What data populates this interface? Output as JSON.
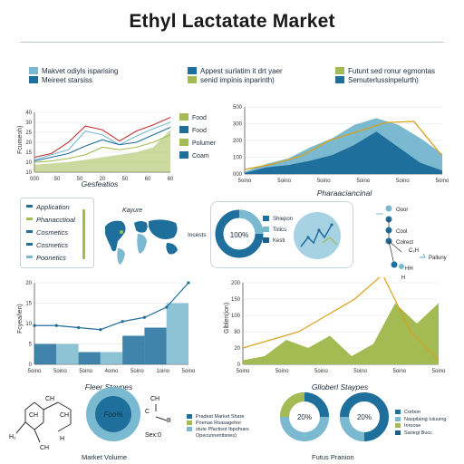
{
  "title": "Ethyl Lactatate Market",
  "colors": {
    "navy": "#1f6f9c",
    "teal": "#7ab9cf",
    "olive": "#a3bb52",
    "red": "#c03030",
    "gold": "#d8a21b",
    "darkteal": "#1a5f8a"
  },
  "top_left_legend": [
    "Makvet odiyls isparising",
    "Meireet starsiss"
  ],
  "top_mid_legend": [
    "Appest surlatim it drt yaer",
    "senid impinis inparinth)"
  ],
  "top_right_legend": [
    "Futunt sed ronur egmontas",
    "Semuterlussinpelurth)"
  ],
  "right_side_labels": [
    "Food",
    "Food",
    "Polumer",
    "Coam"
  ],
  "chart_data": [
    {
      "type": "line",
      "xlabel": "Gesfeatios",
      "ylabel": "Fcumeoh)",
      "x_ticks": [
        "000",
        "50",
        "50",
        "20",
        "50",
        "60",
        "60"
      ],
      "y_ticks": [
        "40",
        "30",
        "25",
        "20",
        "15",
        "10",
        "10"
      ],
      "series": [
        {
          "values": [
            12,
            15,
            24,
            37,
            34,
            25,
            33,
            38,
            44
          ]
        },
        {
          "values": [
            10,
            14,
            18,
            33,
            30,
            22,
            29,
            35,
            40
          ]
        },
        {
          "values": [
            9,
            12,
            15,
            21,
            26,
            22,
            24,
            30,
            36
          ]
        },
        {
          "values": [
            8,
            9,
            11,
            14,
            20,
            18,
            20,
            24,
            30
          ]
        },
        {
          "values": [
            6,
            7,
            8,
            10,
            12,
            14,
            16,
            20,
            34
          ]
        }
      ]
    },
    {
      "type": "area",
      "xlabel": "Pharaaciancinal",
      "y_ticks": [
        "500",
        "300",
        "200",
        "100",
        "000"
      ],
      "x_ticks": [
        "5oino",
        "5oino",
        "5oino",
        "5oino",
        "5oino",
        "5oino"
      ],
      "gold_line": [
        20,
        45,
        80,
        150,
        190,
        230,
        235,
        80
      ],
      "area_light": [
        10,
        45,
        70,
        120,
        160,
        220,
        250,
        220,
        160,
        90
      ],
      "area_dark": [
        5,
        30,
        40,
        60,
        85,
        130,
        190,
        120,
        50,
        15
      ]
    },
    {
      "type": "line",
      "xlabel": "Fleer Staypes",
      "ylabel": "Fcyea/ien)",
      "y_ticks": [
        "20",
        "15",
        "10",
        "5",
        "0"
      ],
      "x_ticks": [
        "5oino",
        "5oino",
        "5oino",
        "4oino",
        "5oino",
        "1oino",
        "5oino"
      ],
      "line": [
        9.5,
        9.5,
        9,
        8.5,
        10.5,
        11.5,
        14,
        20
      ],
      "bars": [
        5,
        5,
        3,
        3,
        7,
        9,
        15
      ]
    },
    {
      "type": "area",
      "xlabel": "Glloberl Staypes",
      "ylabel": "Glblen(ion)",
      "y_ticks": [
        "200",
        "150",
        "100",
        "80",
        "20",
        "0"
      ],
      "x_ticks": [
        "5oino",
        "5oino",
        "5oino",
        "5oino",
        "5oino",
        "5oino"
      ],
      "gold_line": [
        40,
        60,
        80,
        120,
        160,
        220,
        80,
        10
      ],
      "area_olive": [
        10,
        20,
        60,
        40,
        70,
        20,
        50,
        150,
        100,
        150
      ]
    }
  ],
  "application_box": {
    "items": [
      "Application",
      "Phanacctioal",
      "Cosmetics",
      "Cosmetics",
      "Poonetics"
    ],
    "map_label": "Kayure"
  },
  "donut_1": {
    "label": "100%",
    "side_label": "Incests",
    "legend": [
      "Shiepon",
      "Tolics",
      "Kesti"
    ]
  },
  "molecule": {
    "labels": [
      "Ooor",
      "Cool",
      "Colrect",
      "C₂H",
      "Palluny",
      "HH",
      "H"
    ]
  },
  "bottom_left": {
    "caption": "Market Volume",
    "donut_label": "Foo%",
    "chem_labels": [
      "CH",
      "CH",
      "H₂",
      "H",
      "CH",
      "CH"
    ],
    "chem2": [
      "CH",
      "C",
      "B",
      "Sex:0"
    ],
    "legend": [
      "Pradest Market Share",
      "Poenas Roasagehor",
      "stute Pfactisot Ibpohues",
      "Opecunnenttsnes)"
    ]
  },
  "bottom_right": {
    "caption": "Futus Pranion",
    "donut_a": "20%",
    "donut_b": "20%",
    "legend": [
      "Corbon",
      "Naspilaing Iuluuing",
      "Inroose",
      "Sariegi Bucc"
    ]
  }
}
